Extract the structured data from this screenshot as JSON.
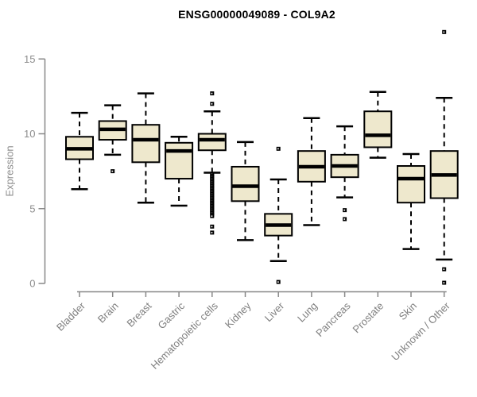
{
  "title": "ENSG00000049089 - COL9A2",
  "colors": {
    "background": "#ffffff",
    "box_fill": "#EEE8CD",
    "box_border": "#000000",
    "median": "#000000",
    "whisker": "#000000",
    "outlier": "#000000",
    "axis_gray": "#888888",
    "tick_label_gray": "#8c8c8c",
    "category_label_gray": "#808080",
    "title_color": "#000000"
  },
  "chart_data": {
    "type": "boxplot",
    "title": "ENSG00000049089 - COL9A2",
    "xlabel": "",
    "ylabel": "Expression",
    "ylim": [
      0,
      15
    ],
    "yticks": [
      0,
      5,
      10,
      15
    ],
    "grid": false,
    "legend": "none",
    "categories": [
      "Bladder",
      "Brain",
      "Breast",
      "Gastric",
      "Hematopoietic cells",
      "Kidney",
      "Liver",
      "Lung",
      "Pancreas",
      "Prostate",
      "Skin",
      "Unknown / Other"
    ],
    "series": [
      {
        "name": "Bladder",
        "whisker_low": 6.3,
        "q1": 8.3,
        "median": 9.0,
        "q3": 9.8,
        "whisker_high": 11.4,
        "outliers": []
      },
      {
        "name": "Brain",
        "whisker_low": 8.6,
        "q1": 9.6,
        "median": 10.3,
        "q3": 10.85,
        "whisker_high": 11.9,
        "outliers": [
          7.5
        ]
      },
      {
        "name": "Breast",
        "whisker_low": 5.4,
        "q1": 8.1,
        "median": 9.6,
        "q3": 10.6,
        "whisker_high": 12.7,
        "outliers": []
      },
      {
        "name": "Gastric",
        "whisker_low": 5.2,
        "q1": 7.0,
        "median": 8.85,
        "q3": 9.4,
        "whisker_high": 9.8,
        "outliers": []
      },
      {
        "name": "Hematopoietic cells",
        "whisker_low": 7.4,
        "q1": 8.9,
        "median": 9.6,
        "q3": 10.0,
        "whisker_high": 11.5,
        "outliers": [
          12.7,
          12.0,
          7.3,
          7.2,
          7.1,
          7.0,
          6.9,
          6.8,
          6.7,
          6.6,
          6.5,
          6.4,
          6.3,
          6.2,
          6.1,
          6.0,
          5.9,
          5.8,
          5.7,
          5.6,
          5.5,
          5.4,
          5.3,
          5.2,
          5.1,
          5.0,
          4.9,
          4.8,
          4.7,
          4.6,
          4.5,
          3.8,
          3.4
        ]
      },
      {
        "name": "Kidney",
        "whisker_low": 2.9,
        "q1": 5.5,
        "median": 6.5,
        "q3": 7.8,
        "whisker_high": 9.45,
        "outliers": []
      },
      {
        "name": "Liver",
        "whisker_low": 1.5,
        "q1": 3.2,
        "median": 3.9,
        "q3": 4.65,
        "whisker_high": 6.95,
        "outliers": [
          9.0,
          0.1
        ]
      },
      {
        "name": "Lung",
        "whisker_low": 3.9,
        "q1": 6.8,
        "median": 7.8,
        "q3": 8.85,
        "whisker_high": 11.05,
        "outliers": []
      },
      {
        "name": "Pancreas",
        "whisker_low": 5.75,
        "q1": 7.1,
        "median": 7.85,
        "q3": 8.6,
        "whisker_high": 10.5,
        "outliers": [
          4.9,
          4.3
        ]
      },
      {
        "name": "Prostate",
        "whisker_low": 8.4,
        "q1": 9.1,
        "median": 9.9,
        "q3": 11.5,
        "whisker_high": 12.8,
        "outliers": []
      },
      {
        "name": "Skin",
        "whisker_low": 2.3,
        "q1": 5.4,
        "median": 7.0,
        "q3": 7.85,
        "whisker_high": 8.65,
        "outliers": []
      },
      {
        "name": "Unknown / Other",
        "whisker_low": 1.6,
        "q1": 5.7,
        "median": 7.25,
        "q3": 8.85,
        "whisker_high": 12.4,
        "outliers": [
          16.8,
          0.95,
          0.05
        ]
      }
    ]
  }
}
